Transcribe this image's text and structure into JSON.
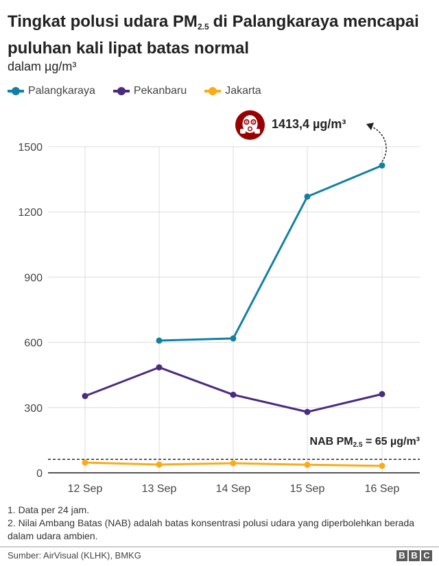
{
  "header": {
    "title_part1": "Tingkat polusi udara PM",
    "title_sub": "2.5",
    "title_part2": "di Palangkaraya mencapai puluhan kali lipat batas normal",
    "subtitle": "dalam µg/m³"
  },
  "legend": [
    {
      "label": "Palangkaraya",
      "color": "#1380A1"
    },
    {
      "label": "Pekanbaru",
      "color": "#4B2A7F"
    },
    {
      "label": "Jakarta",
      "color": "#FAAB18"
    }
  ],
  "annotations": {
    "peak_value": "1413,4 µg/m³",
    "peak_icon": "gas-mask-icon",
    "nab_prefix": "NAB PM",
    "nab_sub": "2.5",
    "nab_suffix": " = 65 µg/m³"
  },
  "notes": [
    "1. Data per 24 jam.",
    "2. Nilai Ambang Batas (NAB) adalah batas konsentrasi polusi udara yang diperbolehkan berada dalam udara ambien."
  ],
  "footer": {
    "source": "Sumber: AirVisual (KLHK), BMKG",
    "logo_letters": [
      "B",
      "B",
      "C"
    ]
  },
  "chart_data": {
    "type": "line",
    "title": "Tingkat polusi udara PM2.5 di Palangkaraya mencapai puluhan kali lipat batas normal",
    "subtitle": "dalam µg/m³",
    "xlabel": "",
    "ylabel": "µg/m³",
    "categories": [
      "12 Sep",
      "13 Sep",
      "14 Sep",
      "15 Sep",
      "16 Sep"
    ],
    "yticks": [
      0,
      300,
      600,
      900,
      1200,
      1500
    ],
    "ylim": [
      0,
      1500
    ],
    "grid": true,
    "legend_position": "top-left",
    "series": [
      {
        "name": "Palangkaraya",
        "color": "#1380A1",
        "values": [
          null,
          608,
          618,
          1270,
          1413.4
        ]
      },
      {
        "name": "Pekanbaru",
        "color": "#4B2A7F",
        "values": [
          353,
          485,
          359,
          280,
          362
        ]
      },
      {
        "name": "Jakarta",
        "color": "#FAAB18",
        "values": [
          47,
          38,
          44,
          37,
          32
        ]
      }
    ],
    "reference_line": {
      "label": "NAB PM2.5 = 65 µg/m³",
      "value": 65,
      "style": "dashed"
    },
    "annotations": [
      {
        "text": "1413,4 µg/m³",
        "x": "16 Sep",
        "series": "Palangkaraya"
      }
    ]
  }
}
